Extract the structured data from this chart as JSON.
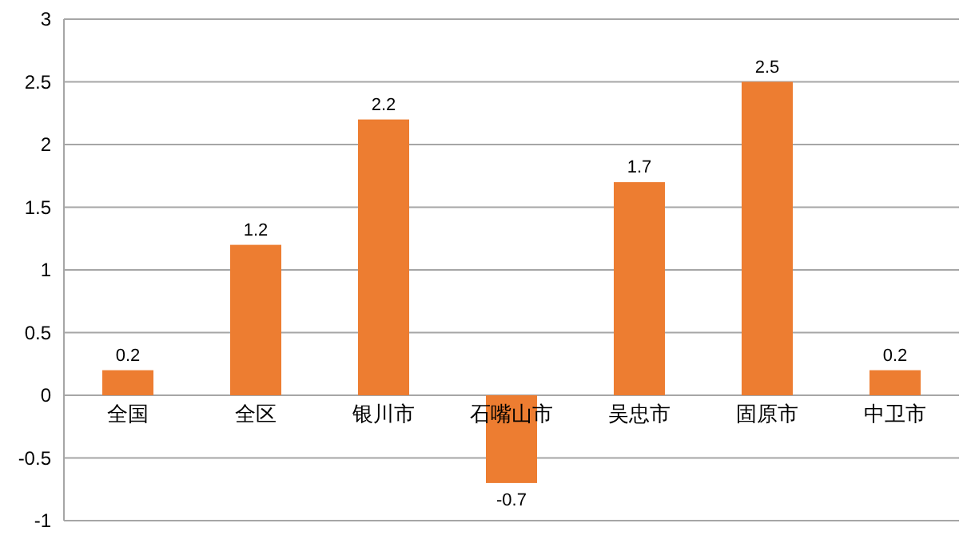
{
  "chart_data": {
    "type": "bar",
    "categories": [
      "全国",
      "全区",
      "银川市",
      "石嘴山市",
      "吴忠市",
      "固原市",
      "中卫市"
    ],
    "values": [
      0.2,
      1.2,
      2.2,
      -0.7,
      1.7,
      2.5,
      0.2
    ],
    "color": "#ed7d31",
    "ylim": [
      -1,
      3
    ],
    "yticks": [
      -1,
      -0.5,
      0,
      0.5,
      1,
      1.5,
      2,
      2.5,
      3
    ],
    "grid": "y",
    "data_labels": true
  }
}
